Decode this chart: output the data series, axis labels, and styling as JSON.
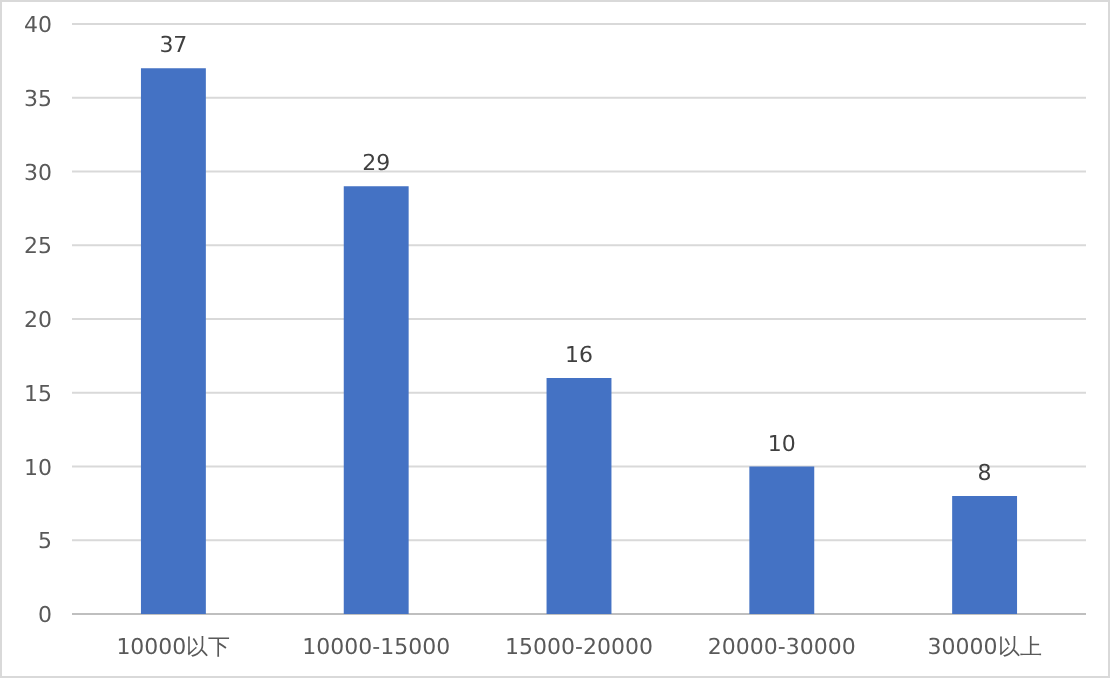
{
  "chart_data": {
    "type": "bar",
    "categories": [
      "10000以下",
      "10000-15000",
      "15000-20000",
      "20000-30000",
      "30000以上"
    ],
    "values": [
      37,
      29,
      16,
      10,
      8
    ],
    "color": "#4472c4",
    "ylim": [
      0,
      40
    ],
    "yticks": [
      0,
      5,
      10,
      15,
      20,
      25,
      30,
      35,
      40
    ],
    "grid": "y",
    "data_labels": true
  }
}
